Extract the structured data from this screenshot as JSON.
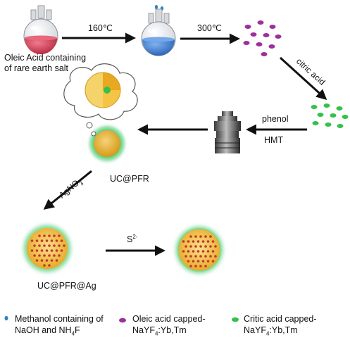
{
  "steps": {
    "temp_1": "160℃",
    "temp_2": "300℃",
    "start_label_line1": "Oleic Acid containing",
    "start_label_line2": "of rare earth salt",
    "citric_acid": "citric acid",
    "phenol": "phenol",
    "hmt": "HMT",
    "agno3": "AgNO",
    "agno3_sub": "3",
    "uc_pfr": "UC@PFR",
    "uc_pfr_ag": "UC@PFR@Ag",
    "s2_base": "S",
    "s2_sup": "2-"
  },
  "legend": {
    "methanol_line1": "Methanol containing of",
    "methanol_line2_a": "NaOH and NH",
    "methanol_line2_sub": "4",
    "methanol_line2_b": "F",
    "oleic_line1": "Oleic acid capped-",
    "oleic_line2_a": "NaYF",
    "oleic_line2_sub": "4",
    "oleic_line2_b": ":Yb,Tm",
    "citric_line1": "Critic acid capped-",
    "citric_line2_a": "NaYF",
    "citric_line2_sub": "4",
    "citric_line2_b": ":Yb,Tm"
  },
  "colors": {
    "methanol_drop": "#2e86c1",
    "oleic_particle": "#9c2f9c",
    "citric_particle": "#35c04a",
    "red_flask_liquid": "#d9405a",
    "blue_flask_liquid": "#3f7fd1",
    "pfr_core": "#d9a21c",
    "pfr_halo": "#27b354",
    "ag_dot": "#c0392b",
    "shell": "#f0c24a"
  },
  "icons": [
    "round-bottom-flask-icon",
    "autoclave-icon",
    "nanoparticle-cross-section-icon",
    "arrow-icon"
  ]
}
